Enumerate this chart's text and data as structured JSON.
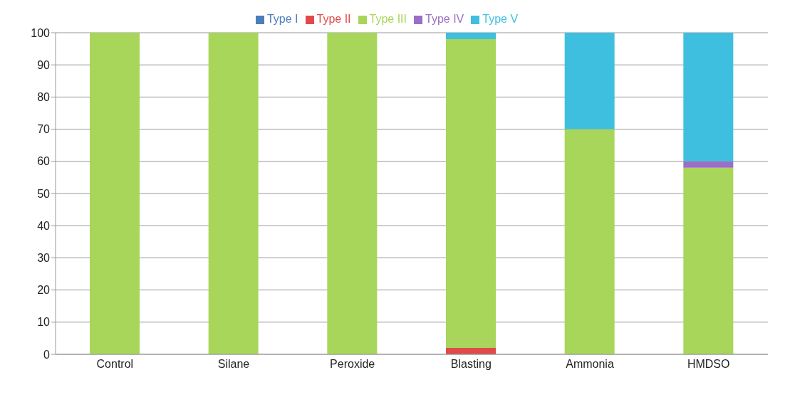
{
  "chart_data": {
    "type": "bar",
    "stacked": true,
    "categories": [
      "Control",
      "Silane",
      "Peroxide",
      "Blasting",
      "Ammonia",
      "HMDSO"
    ],
    "series": [
      {
        "name": "Type I",
        "color": "#4a7ebb",
        "values": [
          0,
          0,
          0,
          0,
          0,
          0
        ]
      },
      {
        "name": "Type II",
        "color": "#e04a4a",
        "values": [
          0,
          0,
          0,
          2,
          0,
          0
        ]
      },
      {
        "name": "Type III",
        "color": "#a8d65a",
        "values": [
          100,
          100,
          100,
          96,
          70,
          58
        ]
      },
      {
        "name": "Type IV",
        "color": "#9b6fc4",
        "values": [
          0,
          0,
          0,
          0,
          0,
          2
        ]
      },
      {
        "name": "Type V",
        "color": "#3fbfe0",
        "values": [
          0,
          0,
          0,
          2,
          30,
          40
        ]
      }
    ],
    "ylim": [
      0,
      100
    ],
    "yticks": [
      0,
      10,
      20,
      30,
      40,
      50,
      60,
      70,
      80,
      90,
      100
    ],
    "grid": "y",
    "legend": "top"
  }
}
